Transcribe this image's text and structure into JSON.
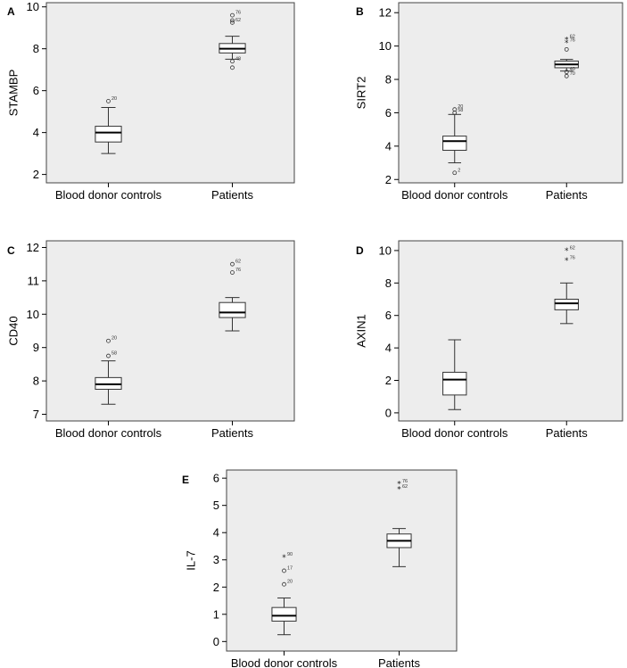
{
  "chart_data": [
    {
      "panel": "A",
      "type": "box",
      "ylabel": "STAMBP",
      "ylim": [
        1.6,
        10.2
      ],
      "yticks": [
        2,
        4,
        6,
        8,
        10
      ],
      "categories": [
        "Blood donor controls",
        "Patients"
      ],
      "boxes": [
        {
          "category": "Blood donor controls",
          "min": 3.0,
          "q1": 3.55,
          "median": 4.0,
          "q3": 4.3,
          "max": 5.2,
          "outliers": [
            {
              "value": 5.5,
              "label": "20",
              "marker": "circle"
            }
          ]
        },
        {
          "category": "Patients",
          "min": 7.5,
          "q1": 7.8,
          "median": 8.0,
          "q3": 8.25,
          "max": 8.6,
          "outliers": [
            {
              "value": 9.6,
              "label": "76",
              "marker": "circle"
            },
            {
              "value": 9.35,
              "label": "",
              "marker": "circle"
            },
            {
              "value": 9.25,
              "label": "62",
              "marker": "circle"
            },
            {
              "value": 7.4,
              "label": "48",
              "marker": "circle"
            },
            {
              "value": 7.1,
              "label": "",
              "marker": "circle"
            }
          ]
        }
      ]
    },
    {
      "panel": "B",
      "type": "box",
      "ylabel": "SIRT2",
      "ylim": [
        1.8,
        12.6
      ],
      "yticks": [
        2,
        4,
        6,
        8,
        10,
        12
      ],
      "categories": [
        "Blood donor controls",
        "Patients"
      ],
      "boxes": [
        {
          "category": "Blood donor controls",
          "min": 3.0,
          "q1": 3.75,
          "median": 4.3,
          "q3": 4.6,
          "max": 5.9,
          "outliers": [
            {
              "value": 6.2,
              "label": "20",
              "marker": "circle"
            },
            {
              "value": 6.0,
              "label": "58",
              "marker": "circle"
            },
            {
              "value": 2.4,
              "label": "2",
              "marker": "circle"
            }
          ]
        },
        {
          "category": "Patients",
          "min": 8.5,
          "q1": 8.7,
          "median": 8.9,
          "q3": 9.1,
          "max": 9.2,
          "outliers": [
            {
              "value": 10.4,
              "label": "62",
              "marker": "star"
            },
            {
              "value": 10.2,
              "label": "76",
              "marker": "star"
            },
            {
              "value": 9.8,
              "label": "",
              "marker": "circle"
            },
            {
              "value": 8.45,
              "label": "40",
              "marker": "circle"
            },
            {
              "value": 8.2,
              "label": "70",
              "marker": "circle"
            }
          ]
        }
      ]
    },
    {
      "panel": "C",
      "type": "box",
      "ylabel": "CD40",
      "ylim": [
        6.8,
        12.2
      ],
      "yticks": [
        7,
        8,
        9,
        10,
        11,
        12
      ],
      "categories": [
        "Blood donor controls",
        "Patients"
      ],
      "boxes": [
        {
          "category": "Blood donor controls",
          "min": 7.3,
          "q1": 7.75,
          "median": 7.9,
          "q3": 8.1,
          "max": 8.6,
          "outliers": [
            {
              "value": 9.2,
              "label": "20",
              "marker": "circle"
            },
            {
              "value": 8.75,
              "label": "58",
              "marker": "circle"
            }
          ]
        },
        {
          "category": "Patients",
          "min": 9.5,
          "q1": 9.9,
          "median": 10.05,
          "q3": 10.35,
          "max": 10.5,
          "outliers": [
            {
              "value": 11.5,
              "label": "62",
              "marker": "circle"
            },
            {
              "value": 11.25,
              "label": "76",
              "marker": "circle"
            }
          ]
        }
      ]
    },
    {
      "panel": "D",
      "type": "box",
      "ylabel": "AXIN1",
      "ylim": [
        -0.5,
        10.6
      ],
      "yticks": [
        0,
        2,
        4,
        6,
        8,
        10
      ],
      "categories": [
        "Blood donor controls",
        "Patients"
      ],
      "boxes": [
        {
          "category": "Blood donor controls",
          "min": 0.2,
          "q1": 1.1,
          "median": 2.05,
          "q3": 2.5,
          "max": 4.5,
          "outliers": []
        },
        {
          "category": "Patients",
          "min": 5.5,
          "q1": 6.35,
          "median": 6.75,
          "q3": 7.0,
          "max": 8.0,
          "outliers": [
            {
              "value": 10.0,
              "label": "62",
              "marker": "star"
            },
            {
              "value": 9.4,
              "label": "76",
              "marker": "star"
            }
          ]
        }
      ]
    },
    {
      "panel": "E",
      "type": "box",
      "ylabel": "IL-7",
      "ylim": [
        -0.35,
        6.3
      ],
      "yticks": [
        0,
        1,
        2,
        3,
        4,
        5,
        6
      ],
      "categories": [
        "Blood donor controls",
        "Patients"
      ],
      "boxes": [
        {
          "category": "Blood donor controls",
          "min": 0.25,
          "q1": 0.75,
          "median": 0.95,
          "q3": 1.25,
          "max": 1.6,
          "outliers": [
            {
              "value": 3.1,
              "label": "90",
              "marker": "star"
            },
            {
              "value": 2.6,
              "label": "17",
              "marker": "circle"
            },
            {
              "value": 2.1,
              "label": "20",
              "marker": "circle"
            }
          ]
        },
        {
          "category": "Patients",
          "min": 2.75,
          "q1": 3.45,
          "median": 3.7,
          "q3": 3.95,
          "max": 4.15,
          "outliers": [
            {
              "value": 5.8,
              "label": "76",
              "marker": "star"
            },
            {
              "value": 5.6,
              "label": "62",
              "marker": "star"
            }
          ]
        }
      ]
    }
  ]
}
